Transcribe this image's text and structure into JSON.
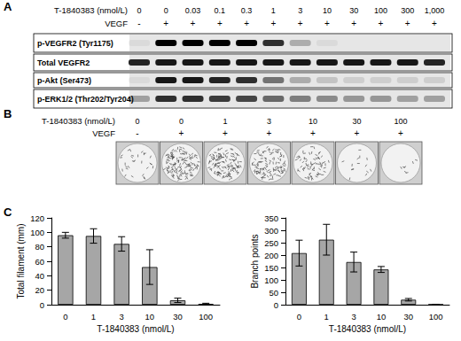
{
  "panel_a": {
    "label": "A",
    "dose_title": "T-1840383 (nmol/L)",
    "doses": [
      "0",
      "0",
      "0.03",
      "0.1",
      "0.3",
      "1",
      "3",
      "10",
      "30",
      "100",
      "300",
      "1,000"
    ],
    "vegf_title": "VEGF",
    "vegf": [
      "-",
      "+",
      "+",
      "+",
      "+",
      "+",
      "+",
      "+",
      "+",
      "+",
      "+",
      "+"
    ],
    "blots": [
      {
        "name": "p-VEGFR2 (Tyr1175)",
        "intensity": [
          0.05,
          1,
          1,
          1,
          1,
          0.8,
          0.25,
          0.05,
          0,
          0,
          0,
          0
        ]
      },
      {
        "name": "Total VEGFR2",
        "intensity": [
          0.85,
          0.9,
          0.9,
          0.9,
          0.9,
          0.9,
          0.9,
          0.9,
          0.9,
          0.9,
          0.9,
          0.85
        ]
      },
      {
        "name": "p-Akt (Ser473)",
        "intensity": [
          0.05,
          0.9,
          0.9,
          0.85,
          0.8,
          0.5,
          0.25,
          0.15,
          0.1,
          0.1,
          0.1,
          0.1
        ]
      },
      {
        "name": "p-ERK1/2 (Thr202/Tyr204)",
        "intensity": [
          0.3,
          0.8,
          0.8,
          0.75,
          0.7,
          0.55,
          0.45,
          0.4,
          0.35,
          0.35,
          0.3,
          0.3
        ]
      }
    ]
  },
  "panel_b": {
    "label": "B",
    "dose_title": "T-1840383 (nmol/L)",
    "doses": [
      "0",
      "0",
      "1",
      "3",
      "10",
      "30",
      "100"
    ],
    "vegf_title": "VEGF",
    "vegf": [
      "-",
      "+",
      "+",
      "+",
      "+",
      "+",
      "+"
    ],
    "network_density": [
      0.2,
      1,
      0.9,
      0.8,
      0.5,
      0.1,
      0.05
    ]
  },
  "panel_c": {
    "label": "C"
  },
  "chart_data": [
    {
      "type": "bar",
      "x_label": "T-1840383 (nmol/L)",
      "y_label": "Total filament (mm)",
      "categories": [
        "0",
        "1",
        "3",
        "10",
        "30",
        "100"
      ],
      "values": [
        96,
        95,
        84,
        52,
        6,
        1
      ],
      "errors": [
        4,
        10,
        10,
        24,
        3,
        1
      ],
      "color": "#a6a6a6",
      "ylim": [
        0,
        120
      ],
      "yticks": [
        0,
        20,
        40,
        60,
        80,
        100,
        120
      ],
      "grid": false
    },
    {
      "type": "bar",
      "x_label": "T-1840383 (nmol/L)",
      "y_label": "Branch points",
      "categories": [
        "0",
        "1",
        "3",
        "10",
        "30",
        "100"
      ],
      "values": [
        208,
        262,
        172,
        142,
        20,
        1
      ],
      "errors": [
        52,
        62,
        40,
        12,
        5,
        0
      ],
      "color": "#a6a6a6",
      "ylim": [
        0,
        350
      ],
      "yticks": [
        0,
        50,
        100,
        150,
        200,
        250,
        300,
        350
      ],
      "grid": false
    }
  ]
}
